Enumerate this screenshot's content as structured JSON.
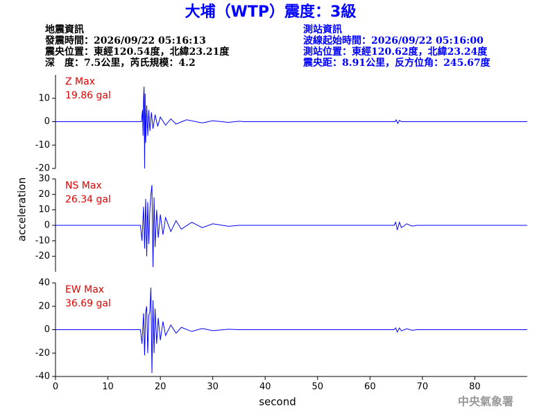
{
  "header": {
    "title": "大埔（WTP）震度：3級",
    "left": [
      "地震資訊",
      "發震時間：2026/09/22 05:16:13",
      "震央位置：東經120.54度，北緯23.21度",
      "深　度：7.5公里，芮氏規模：4.2"
    ],
    "right": [
      "測站資訊",
      "波線起始時間：2026/09/22 05:16:00",
      "測站位置：東經120.62度，北緯23.24度",
      "震央距：8.91公里，反方位角：245.67度"
    ],
    "watermark": "中央氣象署"
  },
  "y_label": "acceleration",
  "chart_data": [
    {
      "type": "line",
      "xlim": [
        0,
        90
      ],
      "ylim": [
        -20,
        20
      ],
      "yticks": [
        -20,
        -10,
        0,
        10
      ],
      "series": [
        {
          "name": "Z Max",
          "annotation": "19.86 gal",
          "color": "#0000ff",
          "x": [
            0,
            16.4,
            16.6,
            16.7,
            16.8,
            16.9,
            17.0,
            17.1,
            17.2,
            17.4,
            17.6,
            17.8,
            18.0,
            18.3,
            18.6,
            19,
            19.5,
            20,
            21,
            22,
            23,
            25,
            28,
            30,
            33,
            35,
            36,
            64.8,
            65,
            65.3,
            65.6,
            66,
            90
          ],
          "values": [
            0,
            0,
            5,
            -6,
            10,
            15,
            -20,
            12,
            -9,
            7,
            -6,
            5,
            -4,
            4,
            -3,
            3,
            -2,
            2,
            -1.5,
            1.2,
            -1,
            0.8,
            -0.5,
            0.4,
            -0.3,
            0.2,
            0,
            0,
            0.8,
            -0.8,
            0.6,
            0,
            0
          ]
        }
      ]
    },
    {
      "type": "line",
      "xlim": [
        0,
        90
      ],
      "ylim": [
        -30,
        30
      ],
      "yticks": [
        -20,
        -10,
        0,
        10,
        20,
        30
      ],
      "series": [
        {
          "name": "NS Max",
          "annotation": "26.34 gal",
          "color": "#0000ff",
          "x": [
            0,
            16.2,
            16.5,
            16.8,
            17.0,
            17.2,
            17.4,
            17.6,
            17.8,
            18.0,
            18.2,
            18.4,
            18.6,
            18.8,
            19.0,
            19.3,
            19.6,
            20,
            20.5,
            21,
            22,
            23,
            24,
            26,
            28,
            30,
            33,
            35,
            64.6,
            64.9,
            65.2,
            65.6,
            66,
            67,
            68,
            69,
            90
          ],
          "values": [
            0,
            0,
            -10,
            12,
            -15,
            17,
            -20,
            15,
            -12,
            10,
            20,
            26,
            -27,
            18,
            -14,
            10,
            -8,
            7,
            -6,
            5,
            -4,
            3,
            -2.5,
            2,
            -1.5,
            1,
            -0.6,
            0,
            0,
            2,
            -3,
            2,
            -1.5,
            1,
            -0.5,
            0,
            0
          ]
        }
      ]
    },
    {
      "type": "line",
      "xlim": [
        0,
        90
      ],
      "ylim": [
        -40,
        40
      ],
      "yticks": [
        -40,
        -20,
        0,
        20,
        40
      ],
      "xticks": [
        0,
        10,
        20,
        30,
        40,
        50,
        60,
        70,
        80
      ],
      "x_label": "second",
      "series": [
        {
          "name": "EW Max",
          "annotation": "36.69 gal",
          "color": "#0000ff",
          "x": [
            0,
            16.2,
            16.5,
            16.8,
            17.0,
            17.2,
            17.4,
            17.6,
            17.8,
            18.0,
            18.2,
            18.4,
            18.6,
            18.8,
            19.0,
            19.3,
            19.6,
            20,
            20.5,
            21,
            22,
            23,
            24,
            26,
            28,
            30,
            33,
            35,
            64.6,
            64.9,
            65.2,
            65.6,
            66,
            67,
            68,
            69,
            90
          ],
          "values": [
            0,
            0,
            -12,
            14,
            -22,
            15,
            20,
            -20,
            12,
            15,
            36,
            -37,
            25,
            -20,
            18,
            -12,
            10,
            -9,
            7,
            -5,
            4,
            -3,
            2,
            -1.5,
            1,
            -0.8,
            0.4,
            0,
            0,
            1.5,
            -2,
            1.5,
            -1,
            0.8,
            -0.5,
            0,
            0
          ]
        }
      ]
    }
  ]
}
